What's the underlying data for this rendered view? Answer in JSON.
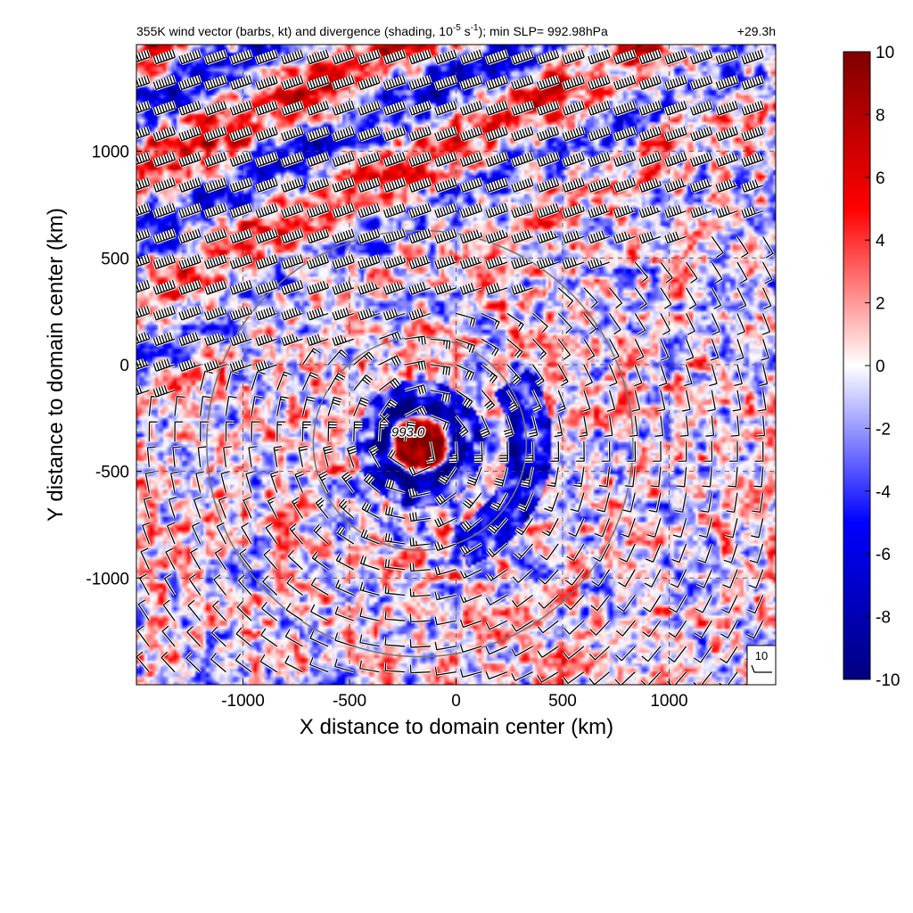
{
  "chart_data": {
    "type": "heatmap",
    "title": "355K wind vector (barbs, kt) and divergence (shading, 10",
    "title_exp": "-5",
    "title_mid": " s",
    "title_exp2": "-1",
    "title_end": "); min SLP= 992.98hPa",
    "time_label": "+29.3h",
    "xlabel": "X distance to domain center (km)",
    "ylabel": "Y distance to domain center (km)",
    "xlim": [
      -1500,
      1500
    ],
    "ylim": [
      -1500,
      1500
    ],
    "xticks": [
      -1000,
      -500,
      0,
      500,
      1000
    ],
    "yticks": [
      -1000,
      -500,
      0,
      500,
      1000
    ],
    "grid": "dashed",
    "colorbar": {
      "min": -10,
      "max": 10,
      "ticks": [
        10,
        8,
        6,
        4,
        2,
        0,
        -2,
        -4,
        -6,
        -8,
        -10
      ],
      "colors": [
        "#00007f",
        "#0000ff",
        "#ffffff",
        "#ff0000",
        "#7f0000"
      ]
    },
    "storm_center": {
      "x": -170,
      "y": -370,
      "label": "993.0"
    },
    "range_rings_km": [
      500,
      1000
    ],
    "reference_barb": {
      "label": "10"
    },
    "vortex": {
      "inner_ring_km": [
        100,
        220
      ],
      "outer_ring_km": [
        230,
        300
      ],
      "jet_band_strength": 0.9
    }
  }
}
